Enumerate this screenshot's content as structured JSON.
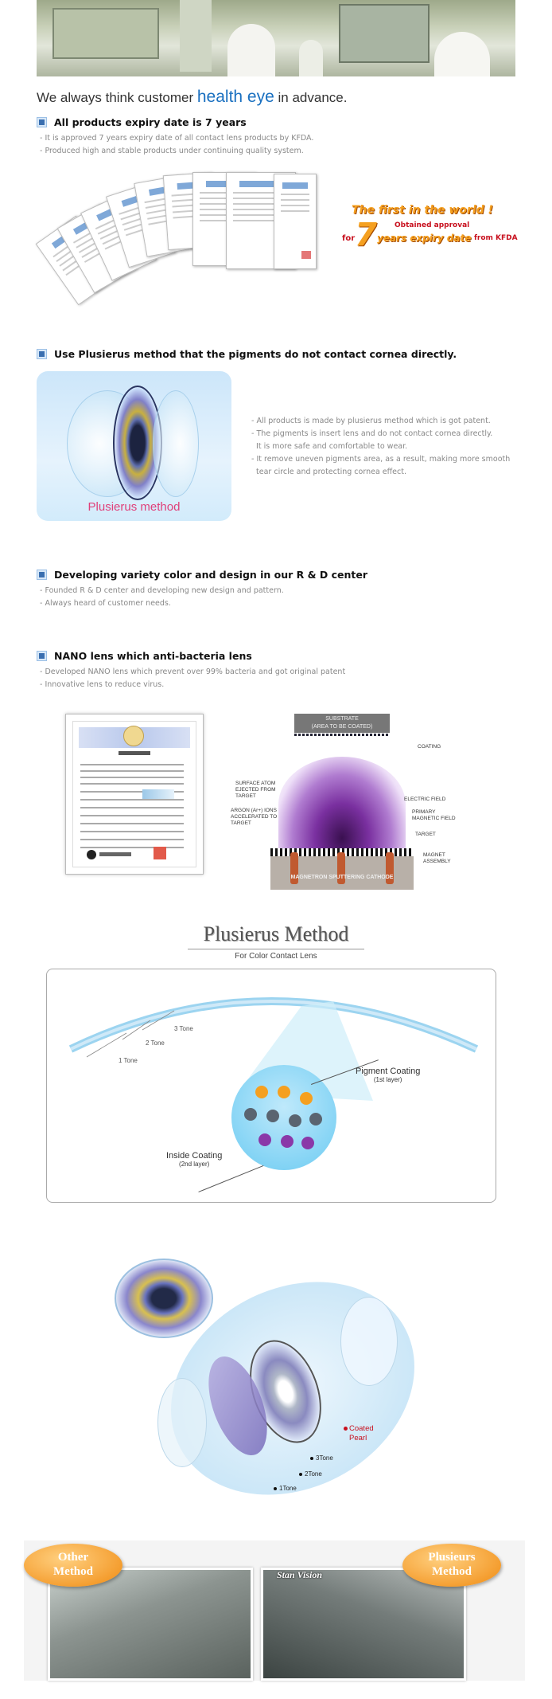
{
  "tagline": {
    "pre": "We always think customer ",
    "highlight": "health eye",
    "post": " in advance."
  },
  "sections": [
    {
      "title": "All products expiry date is 7 years",
      "lines": [
        "- It is approved 7 years expiry date of all contact lens products by KFDA.",
        "- Produced high and stable products under continuing quality system."
      ]
    },
    {
      "title": "Use Plusierus method that the pigments do not contact cornea directly.",
      "lines": [
        "- All products is made by plusierus method which is got patent.",
        "- The pigments is insert lens and do not contact cornea directly.",
        "  It is more safe and comfortable to wear.",
        "- It remove uneven pigments area, as a result, making more smooth",
        "  tear circle and protecting cornea effect."
      ]
    },
    {
      "title": "Developing variety color and design in our R & D center",
      "lines": [
        "- Founded R & D center and developing new design and pattern.",
        "- Always heard of customer needs."
      ]
    },
    {
      "title": "NANO lens which anti-bacteria lens",
      "lines": [
        "- Developed NANO lens which prevent over 99% bacteria and got original patent",
        "- Innovative lens to reduce virus."
      ]
    }
  ],
  "kfda_banner": {
    "line1": "The first in the world !",
    "line2": "Obtained approval",
    "for": "for",
    "number": "7",
    "line3": "years expiry date",
    "from": "from KFDA"
  },
  "plusierus_label": "Plusierus method",
  "sputter": {
    "substrate": "SUBSTRATE",
    "substrate_sub": "(AREA TO BE COATED)",
    "coating": "COATING",
    "surface_atom": "SURFACE ATOM EJECTED FROM TARGET",
    "argon": "ARGON (Ar+) IONS ACCELERATED TO TARGET",
    "electric": "ELECTRIC FIELD",
    "magnetic": "PRIMARY MAGNETIC FIELD",
    "target": "TARGET",
    "magnet": "MAGNET ASSEMBLY",
    "bottom": "MAGNETRON SPUTTERING CATHODE"
  },
  "method": {
    "title": "Plusierus Method",
    "subtitle": "For Color Contact Lens",
    "tone3": "3 Tone",
    "tone2": "2 Tone",
    "tone1": "1 Tone",
    "pigment": "Pigment Coating",
    "pigment_sub": "(1st layer)",
    "inside": "Inside Coating",
    "inside_sub": "(2nd layer)"
  },
  "layers": {
    "coated": "Coated",
    "pearl": "Pearl",
    "t3": "3Tone",
    "t2": "2Tone",
    "t1": "1Tone"
  },
  "compare": {
    "other1": "Other",
    "other2": "Method",
    "stan": "Stan Vision",
    "plus1": "Plusieurs",
    "plus2": "Method"
  },
  "colors": {
    "accent": "#1a70c0",
    "bullet": "#3a6fb0",
    "pink": "#e0407a",
    "orange": "#f5a020"
  }
}
